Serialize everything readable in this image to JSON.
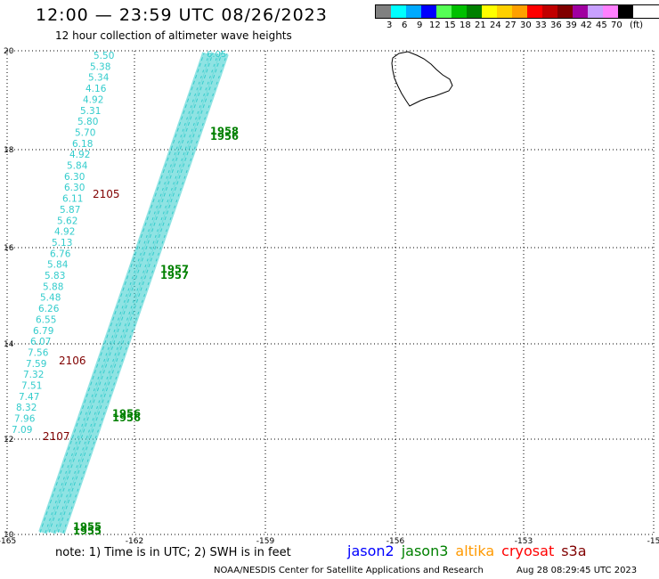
{
  "header": {
    "title": "12:00 — 23:59 UTC 08/26/2023",
    "subtitle": "12 hour collection of altimeter wave heights"
  },
  "legend": {
    "colors": [
      "#808080",
      "#00ffff",
      "#00aaff",
      "#0000ff",
      "#55ff55",
      "#00c000",
      "#008000",
      "#ffff00",
      "#ffd000",
      "#ffa000",
      "#ff0000",
      "#c00000",
      "#800000",
      "#a000a0",
      "#c8a0ff",
      "#ff80ff",
      "#000000"
    ],
    "labels": [
      "3",
      "6",
      "9",
      "12",
      "15",
      "18",
      "21",
      "24",
      "27",
      "30",
      "33",
      "36",
      "39",
      "42",
      "45",
      "70",
      "(ft)"
    ]
  },
  "axes": {
    "x_labels": [
      "-165",
      "-162",
      "-159",
      "-156",
      "-153",
      "-15"
    ],
    "y_labels": [
      "20",
      "18",
      "16",
      "14",
      "12",
      "10"
    ]
  },
  "map": {
    "colors": {
      "light_blue": "#33cccc",
      "green": "#008000",
      "dark_red": "#800000"
    },
    "west_swh_values": [
      "5.50",
      "5.38",
      "5.34",
      "4.16",
      "4.92",
      "5.31",
      "5.80",
      "5.70",
      "6.18",
      "4.92",
      "5.84",
      "6.30",
      "6.30",
      "6.11",
      "5.87",
      "5.62",
      "4.92",
      "5.13",
      "6.76",
      "5.84",
      "5.83",
      "5.88",
      "5.48",
      "6.26",
      "6.55",
      "6.79",
      "6.07",
      "7.56",
      "7.59",
      "7.32",
      "7.51",
      "7.47",
      "8.32",
      "7.96",
      "7.09"
    ],
    "track_top_value": "6.05",
    "time_labels_red": [
      "2105",
      "2106",
      "2107"
    ],
    "time_labels_green": [
      "1958",
      "1956",
      "1957",
      "1957",
      "1956",
      "1956",
      "1955",
      "1955"
    ]
  },
  "footer": {
    "note": "note:  1) Time is in UTC; 2) SWH is in feet",
    "satellites": [
      {
        "name": "jason2",
        "color": "#0000ff"
      },
      {
        "name": "jason3",
        "color": "#008000"
      },
      {
        "name": "altika",
        "color": "#ff9900"
      },
      {
        "name": "cryosat",
        "color": "#ff0000"
      },
      {
        "name": "s3a",
        "color": "#800000"
      }
    ],
    "credit": "NOAA/NESDIS Center for Satellite Applications and Research",
    "timestamp": "Aug 28 08:29:45 UTC 2023"
  }
}
